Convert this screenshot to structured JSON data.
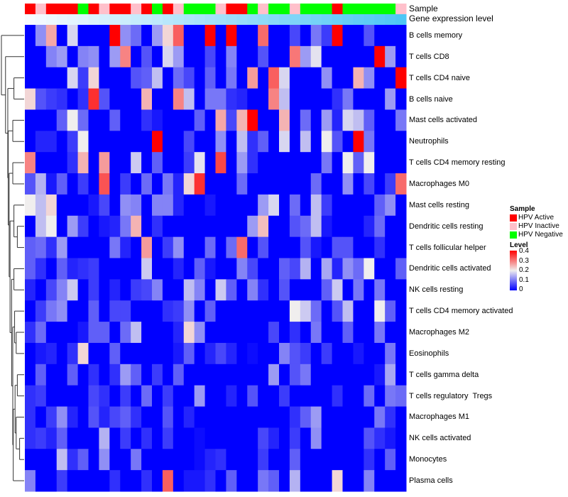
{
  "chart_data": {
    "type": "heatmap",
    "title": "",
    "row_labels": [
      "B cells memory",
      "T cells CD8",
      "T cells CD4 naive",
      "B cells naive",
      "Mast cells activated",
      "Neutrophils",
      "T cells CD4 memory resting",
      "Macrophages M0",
      "Mast cells resting",
      "Dendritic cells resting",
      "T cells follicular helper",
      "Dendritic cells activated",
      "NK cells resting",
      "T cells CD4 memory activated",
      "Macrophages M2",
      "Eosinophils",
      "T cells gamma delta",
      "T cells regulatory  Tregs",
      "Macrophages M1",
      "NK cells activated",
      "Monocytes",
      "Plasma cells"
    ],
    "column_count": 36,
    "annotations": {
      "sample_label": "Sample",
      "gene_label": "Gene expression level",
      "sample": [
        "A",
        "I",
        "A",
        "A",
        "A",
        "N",
        "A",
        "I",
        "A",
        "A",
        "I",
        "A",
        "N",
        "A",
        "I",
        "N",
        "N",
        "N",
        "I",
        "A",
        "A",
        "N",
        "I",
        "N",
        "N",
        "I",
        "N",
        "N",
        "N",
        "A",
        "N",
        "N",
        "N",
        "N",
        "N",
        "I"
      ],
      "gene_expression_level": [
        0,
        0.03,
        0.06,
        0.09,
        0.11,
        0.14,
        0.17,
        0.2,
        0.23,
        0.26,
        0.29,
        0.31,
        0.34,
        0.37,
        0.4,
        0.43,
        0.46,
        0.49,
        0.51,
        0.54,
        0.57,
        0.6,
        0.63,
        0.66,
        0.69,
        0.71,
        0.74,
        0.77,
        0.8,
        0.83,
        0.86,
        0.89,
        0.91,
        0.94,
        0.97,
        1.0
      ]
    },
    "values": [
      [
        0,
        0.12,
        0.26,
        0,
        0.18,
        0,
        0,
        0,
        0.4,
        0.12,
        0.09,
        0,
        0.13,
        0.22,
        0.32,
        0,
        0,
        0.4,
        0,
        0.4,
        0,
        0,
        0.31,
        0,
        0,
        0.06,
        0,
        0.1,
        0.05,
        0.4,
        0,
        0,
        0.07,
        0,
        0,
        0
      ],
      [
        0,
        0,
        0.11,
        0.13,
        0,
        0.11,
        0.12,
        0,
        0.13,
        0.29,
        0,
        0.07,
        0,
        0.18,
        0.13,
        0,
        0,
        0.06,
        0,
        0.11,
        0,
        0,
        0.07,
        0,
        0,
        0.3,
        0.13,
        0.19,
        0,
        0,
        0,
        0,
        0,
        0.4,
        0.13,
        0
      ],
      [
        0,
        0,
        0,
        0,
        0.18,
        0.05,
        0.22,
        0,
        0,
        0,
        0.07,
        0.08,
        0.16,
        0,
        0.09,
        0.06,
        0,
        0.08,
        0,
        0.1,
        0,
        0.27,
        0,
        0.32,
        0.18,
        0,
        0,
        0,
        0.12,
        0,
        0,
        0.25,
        0.12,
        0,
        0,
        0.4
      ],
      [
        0.22,
        0.07,
        0.05,
        0.04,
        0,
        0.04,
        0.36,
        0.07,
        0,
        0,
        0,
        0.25,
        0,
        0,
        0.29,
        0.16,
        0,
        0.1,
        0.1,
        0.04,
        0.03,
        0,
        0,
        0.29,
        0.16,
        0,
        0,
        0,
        0,
        0.04,
        0.1,
        0,
        0,
        0,
        0.13,
        0
      ],
      [
        0,
        0,
        0,
        0.08,
        0.2,
        0.09,
        0,
        0,
        0.08,
        0,
        0,
        0.04,
        0.02,
        0,
        0,
        0,
        0.08,
        0,
        0.26,
        0.06,
        0.25,
        0.4,
        0,
        0,
        0.25,
        0,
        0.09,
        0,
        0.13,
        0.03,
        0.18,
        0.16,
        0.08,
        0,
        0,
        0.1
      ],
      [
        0,
        0.03,
        0.03,
        0,
        0.05,
        0.2,
        0,
        0,
        0,
        0,
        0,
        0,
        0.4,
        0,
        0,
        0.06,
        0,
        0,
        0.12,
        0,
        0.16,
        0.04,
        0.08,
        0,
        0.18,
        0,
        0.16,
        0,
        0.2,
        0.07,
        0,
        0.4,
        0.1,
        0,
        0,
        0
      ],
      [
        0.29,
        0,
        0,
        0,
        0.04,
        0.25,
        0,
        0.27,
        0,
        0,
        0.17,
        0,
        0.08,
        0,
        0,
        0.05,
        0.19,
        0,
        0.34,
        0,
        0.13,
        0.04,
        0,
        0,
        0,
        0,
        0,
        0,
        0.1,
        0,
        0.2,
        0.08,
        0.2,
        0,
        0,
        0
      ],
      [
        0.07,
        0.15,
        0.02,
        0.08,
        0,
        0.05,
        0,
        0.33,
        0,
        0.05,
        0,
        0.09,
        0,
        0.1,
        0.03,
        0.22,
        0.36,
        0,
        0,
        0,
        0.09,
        0,
        0,
        0,
        0,
        0,
        0,
        0.09,
        0,
        0,
        0.12,
        0,
        0.06,
        0,
        0.05,
        0.31
      ],
      [
        0.2,
        0.16,
        0.22,
        0,
        0,
        0,
        0.02,
        0.06,
        0,
        0.12,
        0.11,
        0,
        0.11,
        0.11,
        0.03,
        0,
        0,
        0.02,
        0,
        0,
        0,
        0,
        0.13,
        0.18,
        0,
        0.09,
        0,
        0.16,
        0.05,
        0,
        0,
        0,
        0,
        0.08,
        0.12,
        0
      ],
      [
        0,
        0.16,
        0.2,
        0,
        0.13,
        0.05,
        0,
        0.02,
        0.03,
        0.1,
        0.25,
        0,
        0.04,
        0,
        0,
        0,
        0,
        0,
        0,
        0,
        0,
        0.13,
        0.24,
        0,
        0,
        0.07,
        0.09,
        0.16,
        0.02,
        0,
        0,
        0,
        0.03,
        0.09,
        0,
        0
      ],
      [
        0.08,
        0.09,
        0.04,
        0.13,
        0,
        0,
        0,
        0,
        0.1,
        0.03,
        0,
        0.27,
        0,
        0.05,
        0.12,
        0,
        0,
        0.09,
        0,
        0.09,
        0.31,
        0,
        0.07,
        0,
        0,
        0,
        0.07,
        0.02,
        0,
        0.07,
        0.07,
        0,
        0,
        0.04,
        0,
        0
      ],
      [
        0.08,
        0.04,
        0,
        0.08,
        0.03,
        0.04,
        0.05,
        0,
        0,
        0,
        0,
        0.17,
        0,
        0,
        0.03,
        0,
        0.08,
        0.02,
        0,
        0,
        0.11,
        0.06,
        0,
        0,
        0.08,
        0.06,
        0.15,
        0,
        0.14,
        0.03,
        0.12,
        0.09,
        0.2,
        0,
        0,
        0.08
      ],
      [
        0.03,
        0,
        0.06,
        0.11,
        0.17,
        0,
        0.05,
        0,
        0.03,
        0,
        0.05,
        0.06,
        0.11,
        0,
        0,
        0.16,
        0.11,
        0,
        0.17,
        0.08,
        0,
        0.11,
        0.04,
        0,
        0.07,
        0,
        0,
        0,
        0.08,
        0.17,
        0,
        0.1,
        0,
        0.1,
        0,
        0
      ],
      [
        0,
        0.05,
        0.1,
        0.12,
        0,
        0,
        0.08,
        0,
        0.06,
        0.06,
        0,
        0,
        0,
        0.04,
        0.05,
        0.12,
        0,
        0.08,
        0,
        0,
        0,
        0,
        0,
        0,
        0,
        0.2,
        0.17,
        0.09,
        0,
        0.07,
        0.16,
        0,
        0,
        0.2,
        0.08,
        0
      ],
      [
        0.04,
        0.09,
        0,
        0,
        0,
        0.02,
        0.08,
        0.08,
        0,
        0.09,
        0.16,
        0,
        0,
        0,
        0.03,
        0.22,
        0.12,
        0,
        0,
        0,
        0,
        0,
        0,
        0.06,
        0,
        0.04,
        0,
        0.1,
        0,
        0,
        0.08,
        0,
        0,
        0.1,
        0,
        0
      ],
      [
        0,
        0.02,
        0.03,
        0,
        0.04,
        0.22,
        0,
        0,
        0.08,
        0,
        0,
        0,
        0,
        0,
        0.02,
        0.08,
        0,
        0.03,
        0.06,
        0.03,
        0,
        0.01,
        0,
        0,
        0.11,
        0.07,
        0.05,
        0,
        0.05,
        0,
        0,
        0.02,
        0,
        0,
        0.1,
        0
      ],
      [
        0,
        0.08,
        0,
        0,
        0.08,
        0,
        0.04,
        0,
        0.04,
        0.13,
        0.08,
        0,
        0.05,
        0,
        0.08,
        0,
        0,
        0,
        0,
        0,
        0,
        0,
        0,
        0.13,
        0,
        0.07,
        0.1,
        0,
        0,
        0,
        0,
        0,
        0,
        0.02,
        0.14,
        0
      ],
      [
        0.04,
        0.05,
        0,
        0,
        0,
        0,
        0.06,
        0.04,
        0,
        0.05,
        0,
        0.09,
        0,
        0.05,
        0,
        0,
        0.13,
        0,
        0,
        0.03,
        0,
        0.07,
        0,
        0,
        0.05,
        0,
        0,
        0,
        0,
        0.04,
        0,
        0,
        0.09,
        0,
        0.1,
        0.09
      ],
      [
        0.04,
        0,
        0.05,
        0.12,
        0.03,
        0,
        0.07,
        0.03,
        0.06,
        0.08,
        0.04,
        0,
        0,
        0.07,
        0,
        0.03,
        0,
        0,
        0,
        0,
        0,
        0,
        0,
        0,
        0,
        0.04,
        0.08,
        0.13,
        0,
        0,
        0,
        0,
        0,
        0.1,
        0.04,
        0
      ],
      [
        0.04,
        0.05,
        0.03,
        0.08,
        0,
        0,
        0,
        0.15,
        0,
        0.05,
        0,
        0.04,
        0,
        0.05,
        0,
        0,
        0.01,
        0,
        0,
        0,
        0,
        0,
        0.06,
        0.03,
        0,
        0.05,
        0,
        0.12,
        0,
        0,
        0,
        0,
        0.07,
        0.04,
        0.02,
        0
      ],
      [
        0,
        0,
        0,
        0.16,
        0.04,
        0.08,
        0,
        0.12,
        0,
        0,
        0.1,
        0,
        0,
        0,
        0,
        0,
        0.01,
        0.03,
        0.04,
        0,
        0,
        0,
        0.05,
        0,
        0,
        0.08,
        0,
        0,
        0,
        0,
        0,
        0,
        0.04,
        0,
        0.08,
        0
      ],
      [
        0.11,
        0,
        0,
        0.05,
        0,
        0,
        0,
        0,
        0.04,
        0,
        0,
        0.04,
        0,
        0.32,
        0,
        0.02,
        0.02,
        0.04,
        0,
        0.08,
        0,
        0,
        0.1,
        0.08,
        0,
        0.15,
        0,
        0,
        0,
        0.22,
        0,
        0,
        0.11,
        0,
        0,
        0
      ]
    ],
    "row_dendrogram": {
      "h": 1,
      "c": [
        0,
        {
          "h": 0.82,
          "c": [
            1,
            {
              "h": 0.72,
              "c": [
                {
                  "h": 0.45,
                  "c": [
                    2,
                    3
                  ]
                },
                {
                  "h": 0.7,
                  "c": [
                    {
                      "h": 0.5,
                      "c": [
                        4,
                        5
                      ]
                    },
                    {
                      "h": 0.66,
                      "c": [
                        {
                          "h": 0.5,
                          "c": [
                            6,
                            7
                          ]
                        },
                        {
                          "h": 0.62,
                          "c": [
                            {
                              "h": 0.45,
                              "c": [
                                8,
                                {
                                  "h": 0.3,
                                  "c": [
                                    9,
                                    10
                                  ]
                                }
                              ]
                            },
                            {
                              "h": 0.55,
                              "c": [
                                {
                                  "h": 0.45,
                                  "c": [
                                    11,
                                    12
                                  ]
                                },
                                {
                                  "h": 0.5,
                                  "c": [
                                    {
                                      "h": 0.42,
                                      "c": [
                                        13,
                                        {
                                          "h": 0.35,
                                          "c": [
                                            14,
                                            15
                                          ]
                                        }
                                      ]
                                    },
                                    {
                                      "h": 0.48,
                                      "c": [
                                        {
                                          "h": 0.4,
                                          "c": [
                                            {
                                              "h": 0.3,
                                              "c": [
                                                16,
                                                17
                                              ]
                                            },
                                            {
                                              "h": 0.35,
                                              "c": [
                                                18,
                                                {
                                                  "h": 0.2,
                                                  "c": [
                                                    19,
                                                    20
                                                  ]
                                                }
                                              ]
                                            }
                                          ]
                                        },
                                        21
                                      ]
                                    }
                                  ]
                                }
                              ]
                            }
                          ]
                        }
                      ]
                    }
                  ]
                }
              ]
            }
          ]
        }
      ]
    },
    "color_scale": {
      "min": 0,
      "mid": 0.2,
      "max": 0.4,
      "low_color": "#0000FF",
      "mid_color": "#F0EEEE",
      "high_color": "#FF0000"
    },
    "legend": {
      "position": "right",
      "sample_title": "Sample",
      "sample_items": [
        {
          "key": "A",
          "label": "HPV Active",
          "color": "#FF0000"
        },
        {
          "key": "I",
          "label": "HPV Inactive",
          "color": "#FFC0CB"
        },
        {
          "key": "N",
          "label": "HPV Negative",
          "color": "#00FF00"
        }
      ],
      "level_title": "Level",
      "level_ticks": [
        "0.4",
        "0.3",
        "0.2",
        "0.1",
        "0"
      ]
    },
    "gene_colors": {
      "low": "#F7FBFF",
      "high": "#4EC6F5"
    }
  }
}
